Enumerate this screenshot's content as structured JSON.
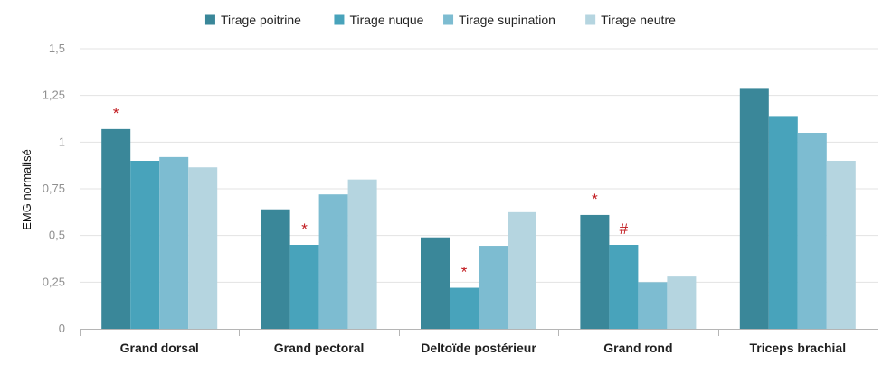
{
  "chart_data": {
    "type": "bar",
    "title": "",
    "xlabel": "",
    "ylabel": "EMG normalisé",
    "ylim": [
      0,
      1.5
    ],
    "yticks": [
      {
        "value": 0,
        "label": "0"
      },
      {
        "value": 0.25,
        "label": "0,25"
      },
      {
        "value": 0.5,
        "label": "0,5"
      },
      {
        "value": 0.75,
        "label": "0,75"
      },
      {
        "value": 1,
        "label": "1"
      },
      {
        "value": 1.25,
        "label": "1,25"
      },
      {
        "value": 1.5,
        "label": "1,5"
      }
    ],
    "grid": true,
    "legend_position": "top",
    "categories": [
      "Grand dorsal",
      "Grand pectoral",
      "Deltoïde postérieur",
      "Grand rond",
      "Triceps brachial"
    ],
    "series": [
      {
        "name": "Tirage poitrine",
        "color": "#3a8799",
        "values": [
          1.07,
          0.64,
          0.49,
          0.61,
          1.29
        ]
      },
      {
        "name": "Tirage nuque",
        "color": "#48a3bb",
        "values": [
          0.9,
          0.45,
          0.22,
          0.45,
          1.14
        ]
      },
      {
        "name": "Tirage supination",
        "color": "#7dbcd1",
        "values": [
          0.92,
          0.72,
          0.445,
          0.25,
          1.05
        ]
      },
      {
        "name": "Tirage neutre",
        "color": "#b5d5e0",
        "values": [
          0.865,
          0.8,
          0.625,
          0.28,
          0.9
        ]
      }
    ],
    "annotations": [
      {
        "text": "*",
        "category": 0,
        "series": 0
      },
      {
        "text": "*",
        "category": 1,
        "series": 1
      },
      {
        "text": "*",
        "category": 2,
        "series": 1
      },
      {
        "text": "*",
        "category": 3,
        "series": 0
      },
      {
        "text": "#",
        "category": 3,
        "series": 1
      }
    ],
    "annotation_color": "#c0161b"
  }
}
